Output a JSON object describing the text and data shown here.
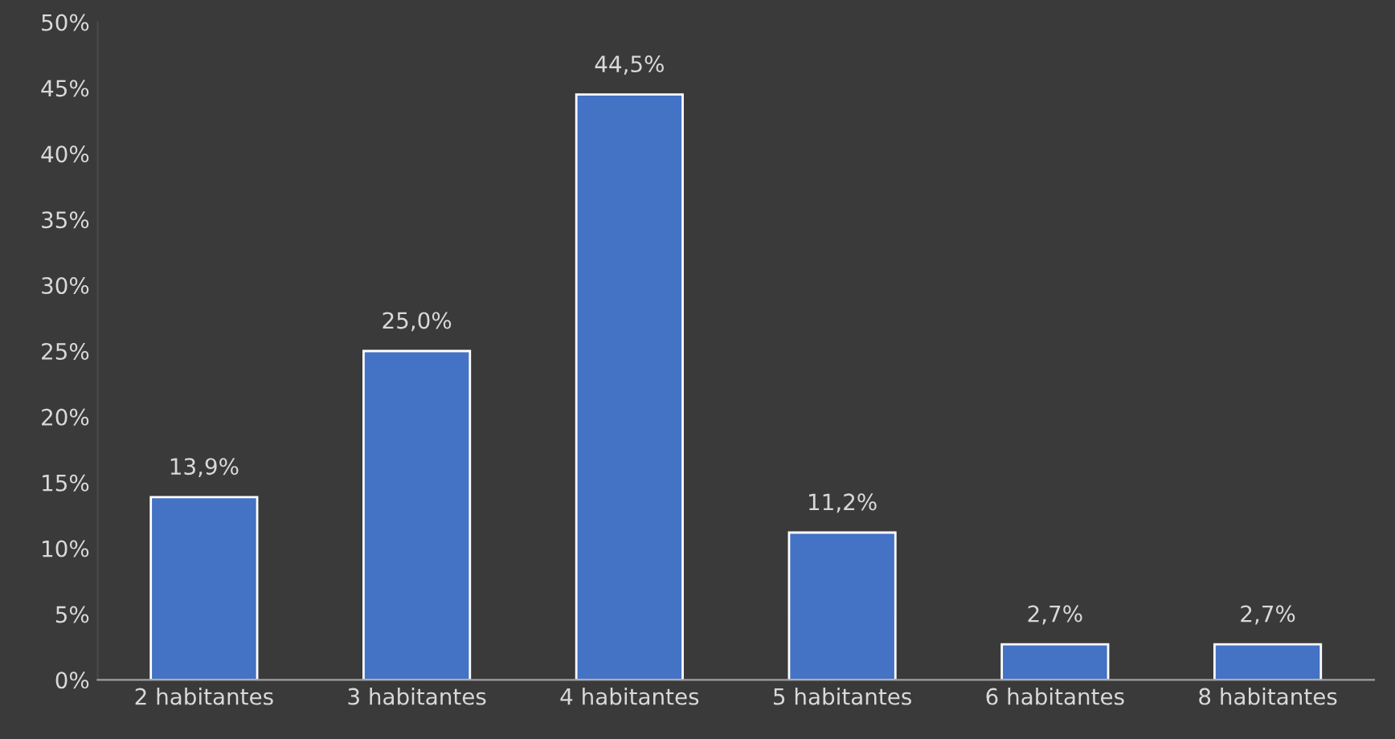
{
  "chart_data": {
    "type": "bar",
    "categories": [
      "2 habitantes",
      "3 habitantes",
      "4 habitantes",
      "5 habitantes",
      "6 habitantes",
      "8 habitantes"
    ],
    "values": [
      13.9,
      25.0,
      44.5,
      11.2,
      2.7,
      2.7
    ],
    "value_labels": [
      "13,9%",
      "25,0%",
      "44,5%",
      "11,2%",
      "2,7%",
      "2,7%"
    ],
    "color": "#4472c4",
    "ylim": [
      0,
      50
    ],
    "yticks": [
      {
        "value": 0,
        "label": "0%"
      },
      {
        "value": 5,
        "label": "5%"
      },
      {
        "value": 10,
        "label": "10%"
      },
      {
        "value": 15,
        "label": "15%"
      },
      {
        "value": 20,
        "label": "20%"
      },
      {
        "value": 25,
        "label": "25%"
      },
      {
        "value": 30,
        "label": "30%"
      },
      {
        "value": 35,
        "label": "35%"
      },
      {
        "value": 40,
        "label": "40%"
      },
      {
        "value": 45,
        "label": "45%"
      },
      {
        "value": 50,
        "label": "50%"
      }
    ],
    "grid": false,
    "legend": false
  }
}
